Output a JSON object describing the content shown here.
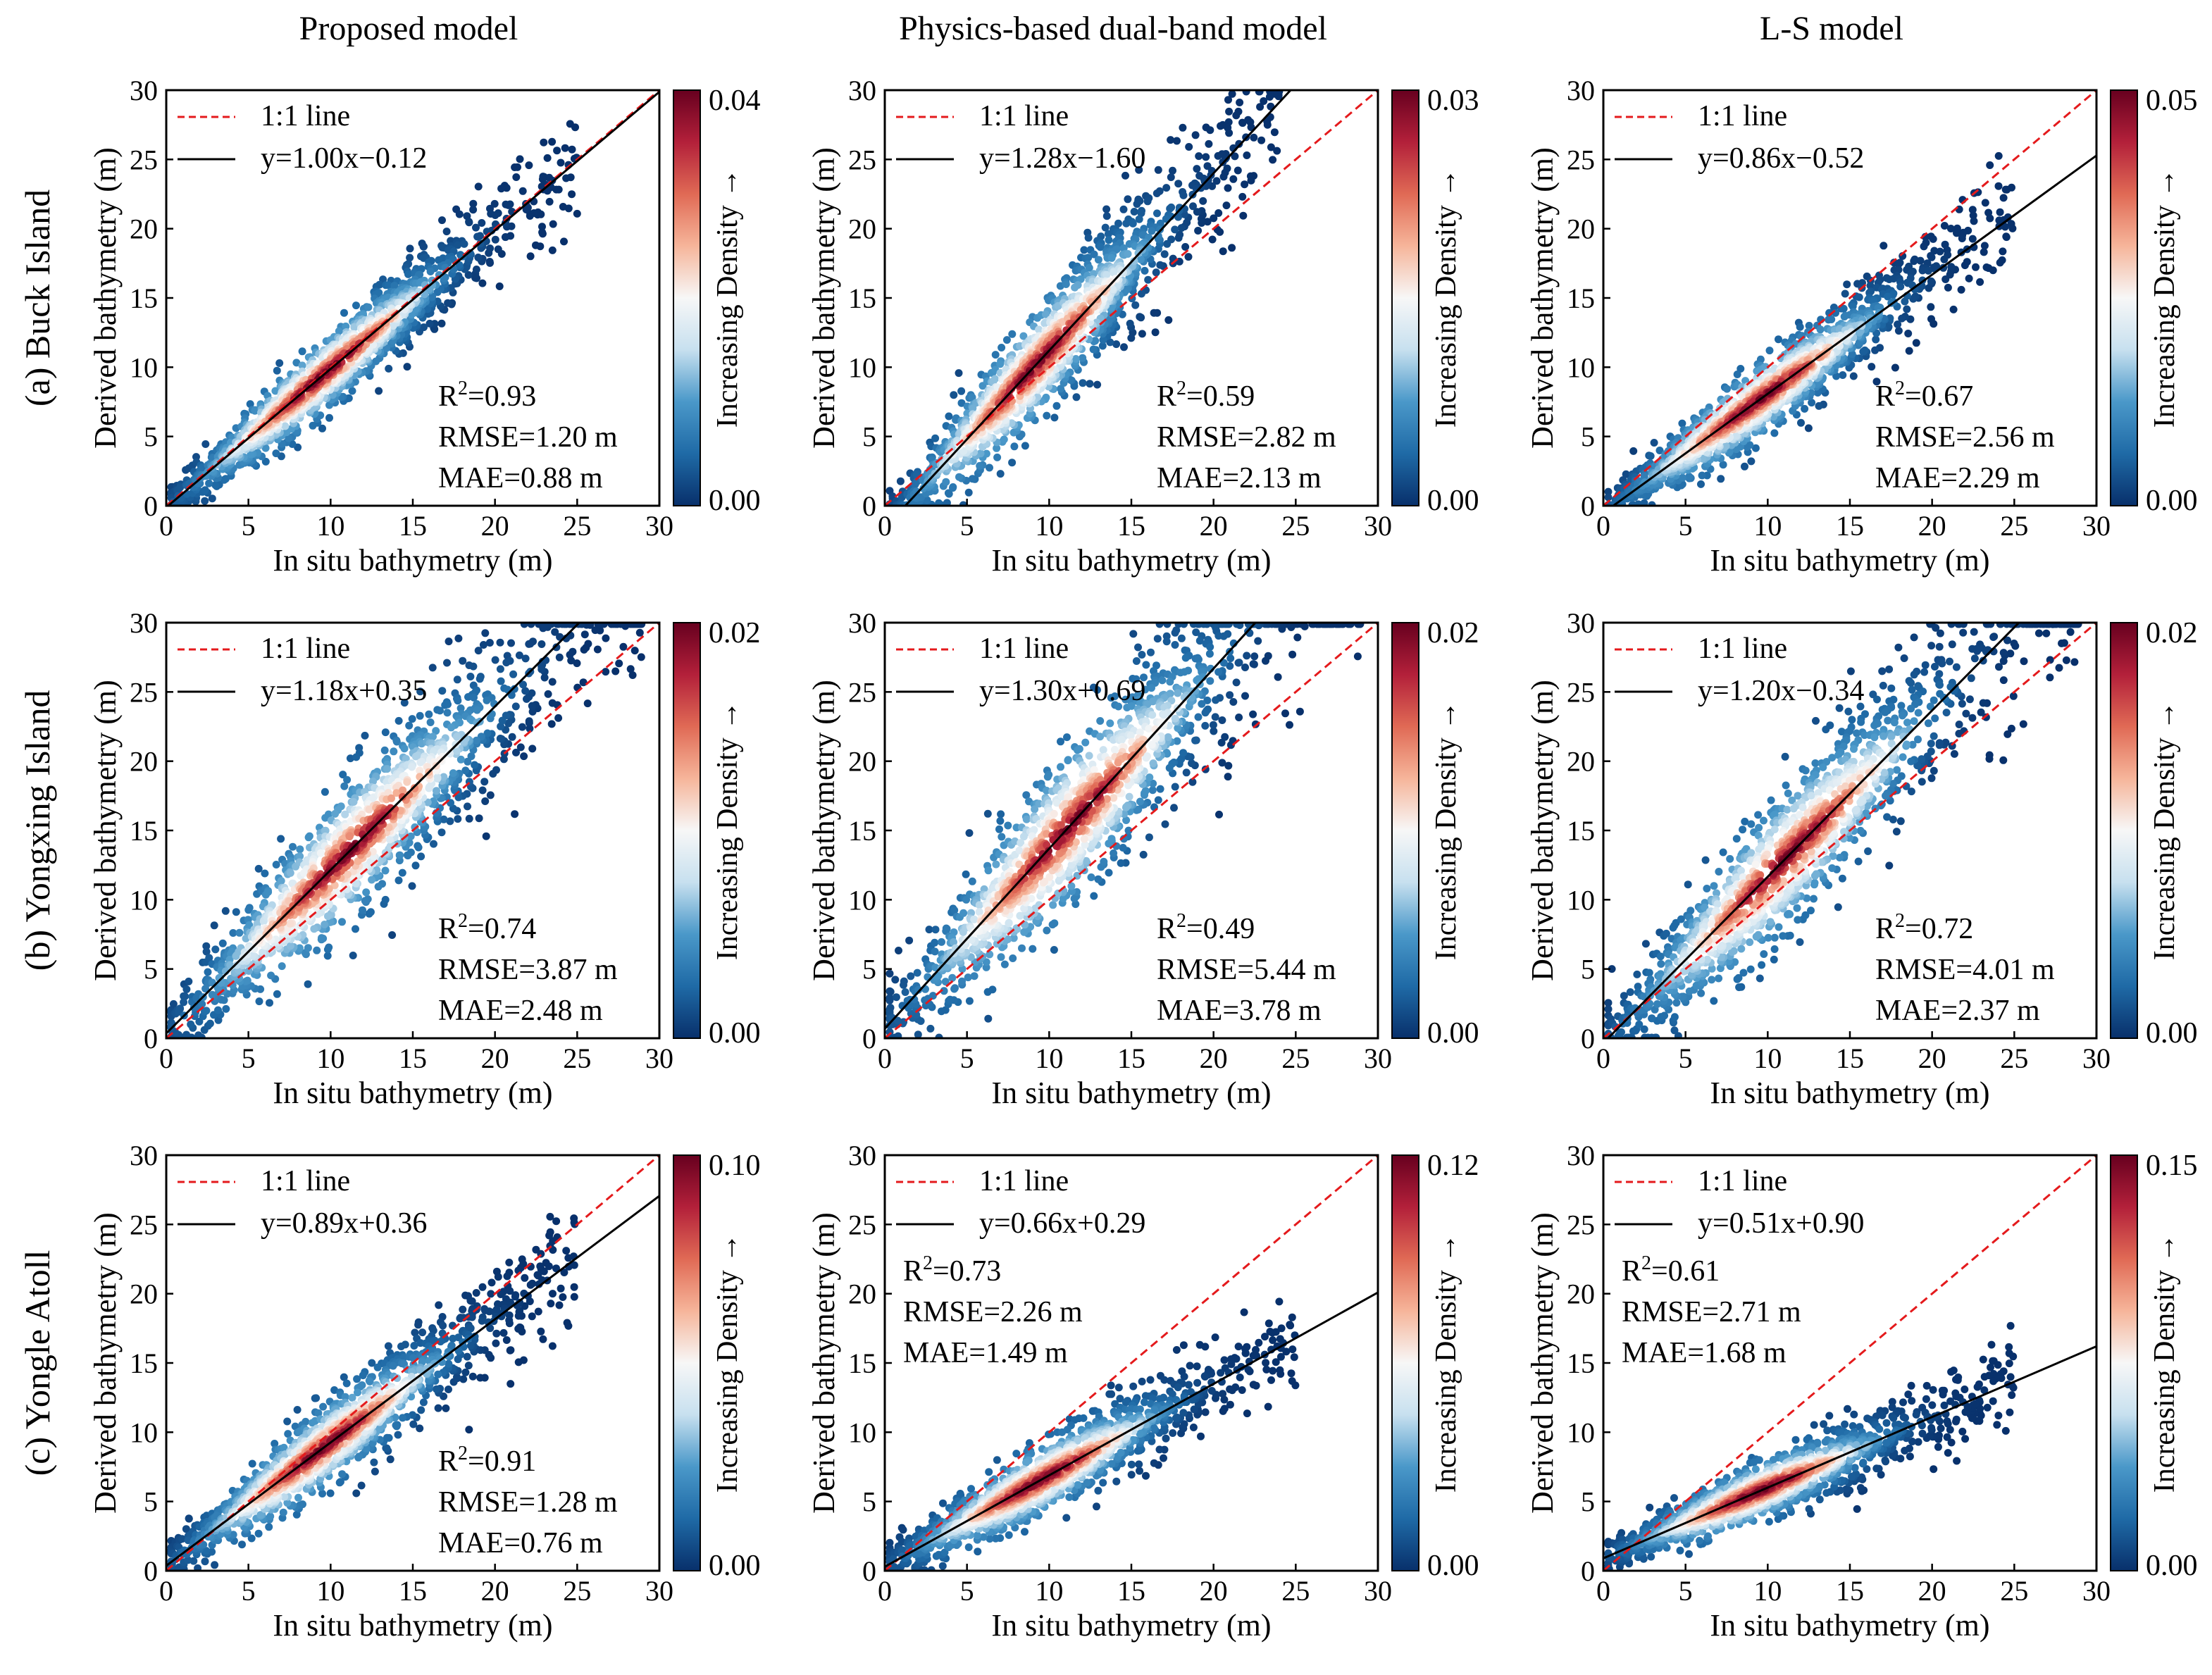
{
  "figure": {
    "column_titles": [
      "Proposed model",
      "Physics-based dual-band model",
      "L-S model"
    ],
    "row_labels": [
      "(a) Buck Island",
      "(b) Yongxing Island",
      "(c) Yongle Atoll"
    ],
    "xlabel": "In situ bathymetry (m)",
    "ylabel": "Derived bathymetry (m)",
    "colorbar_label": "Increasing Density →",
    "legend_identity": "1:1 line",
    "colors": {
      "identity_line": "#e41a1c",
      "fit_line": "#000000",
      "colormap": [
        "#08306b",
        "#1f6aa6",
        "#4a98c9",
        "#c7e0ef",
        "#f7f7f7",
        "#f6b59a",
        "#e06a55",
        "#b3203a",
        "#67001f"
      ]
    }
  },
  "chart_data": [
    {
      "type": "scatter",
      "panel": "Buck Island / Proposed model",
      "xlim": [
        0,
        30
      ],
      "ylim": [
        0,
        30
      ],
      "xticks": [
        0,
        5,
        10,
        15,
        20,
        25,
        30
      ],
      "yticks": [
        0,
        5,
        10,
        15,
        20,
        25,
        30
      ],
      "fit": {
        "slope": 1.0,
        "intercept": -0.12,
        "label": "y=1.00x−0.12"
      },
      "stats": {
        "r2": "=0.93",
        "rmse": "RMSE=1.20 m",
        "mae": "MAE=0.88 m"
      },
      "stats_position": "bottom-right",
      "density_range": [
        "0.00",
        "0.04"
      ],
      "x_range": [
        0.3,
        25
      ],
      "spread": 1.3
    },
    {
      "type": "scatter",
      "panel": "Buck Island / Physics-based dual-band model",
      "xlim": [
        0,
        30
      ],
      "ylim": [
        0,
        30
      ],
      "xticks": [
        0,
        5,
        10,
        15,
        20,
        25,
        30
      ],
      "yticks": [
        0,
        5,
        10,
        15,
        20,
        25,
        30
      ],
      "fit": {
        "slope": 1.28,
        "intercept": -1.6,
        "label": "y=1.28x−1.60"
      },
      "stats": {
        "r2": "=0.59",
        "rmse": "RMSE=2.82 m",
        "mae": "MAE=2.13 m"
      },
      "stats_position": "bottom-right",
      "density_range": [
        "0.00",
        "0.03"
      ],
      "x_range": [
        0.3,
        24
      ],
      "spread": 1.9
    },
    {
      "type": "scatter",
      "panel": "Buck Island / L-S model",
      "xlim": [
        0,
        30
      ],
      "ylim": [
        0,
        30
      ],
      "xticks": [
        0,
        5,
        10,
        15,
        20,
        25,
        30
      ],
      "yticks": [
        0,
        5,
        10,
        15,
        20,
        25,
        30
      ],
      "fit": {
        "slope": 0.86,
        "intercept": -0.52,
        "label": "y=0.86x−0.52"
      },
      "stats": {
        "r2": "=0.67",
        "rmse": "RMSE=2.56 m",
        "mae": "MAE=2.29 m"
      },
      "stats_position": "bottom-right",
      "density_range": [
        "0.00",
        "0.05"
      ],
      "x_range": [
        0.3,
        25
      ],
      "spread": 1.3
    },
    {
      "type": "scatter",
      "panel": "Yongxing Island / Proposed model",
      "xlim": [
        0,
        30
      ],
      "ylim": [
        0,
        30
      ],
      "xticks": [
        0,
        5,
        10,
        15,
        20,
        25,
        30
      ],
      "yticks": [
        0,
        5,
        10,
        15,
        20,
        25,
        30
      ],
      "fit": {
        "slope": 1.18,
        "intercept": 0.35,
        "label": "y=1.18x+0.35"
      },
      "stats": {
        "r2": "=0.74",
        "rmse": "RMSE=3.87 m",
        "mae": "MAE=2.48 m"
      },
      "stats_position": "bottom-right",
      "density_range": [
        "0.00",
        "0.02"
      ],
      "x_range": [
        0.3,
        29
      ],
      "spread": 2.4
    },
    {
      "type": "scatter",
      "panel": "Yongxing Island / Physics-based dual-band model",
      "xlim": [
        0,
        30
      ],
      "ylim": [
        0,
        30
      ],
      "xticks": [
        0,
        5,
        10,
        15,
        20,
        25,
        30
      ],
      "yticks": [
        0,
        5,
        10,
        15,
        20,
        25,
        30
      ],
      "fit": {
        "slope": 1.3,
        "intercept": 0.69,
        "label": "y=1.30x+0.69"
      },
      "stats": {
        "r2": "=0.49",
        "rmse": "RMSE=5.44 m",
        "mae": "MAE=3.78 m"
      },
      "stats_position": "bottom-right",
      "density_range": [
        "0.00",
        "0.02"
      ],
      "x_range": [
        0.3,
        29
      ],
      "spread": 2.8
    },
    {
      "type": "scatter",
      "panel": "Yongxing Island / L-S model",
      "xlim": [
        0,
        30
      ],
      "ylim": [
        0,
        30
      ],
      "xticks": [
        0,
        5,
        10,
        15,
        20,
        25,
        30
      ],
      "yticks": [
        0,
        5,
        10,
        15,
        20,
        25,
        30
      ],
      "fit": {
        "slope": 1.2,
        "intercept": -0.34,
        "label": "y=1.20x−0.34"
      },
      "stats": {
        "r2": "=0.72",
        "rmse": "RMSE=4.01 m",
        "mae": "MAE=2.37 m"
      },
      "stats_position": "bottom-right",
      "density_range": [
        "0.00",
        "0.02"
      ],
      "x_range": [
        0.3,
        29
      ],
      "spread": 2.4
    },
    {
      "type": "scatter",
      "panel": "Yongle Atoll / Proposed model",
      "xlim": [
        0,
        30
      ],
      "ylim": [
        0,
        30
      ],
      "xticks": [
        0,
        5,
        10,
        15,
        20,
        25,
        30
      ],
      "yticks": [
        0,
        5,
        10,
        15,
        20,
        25,
        30
      ],
      "fit": {
        "slope": 0.89,
        "intercept": 0.36,
        "label": "y=0.89x+0.36"
      },
      "stats": {
        "r2": "=0.91",
        "rmse": "RMSE=1.28 m",
        "mae": "MAE=0.76 m"
      },
      "stats_position": "bottom-right",
      "density_range": [
        "0.00",
        "0.10"
      ],
      "x_range": [
        0.3,
        25
      ],
      "spread": 1.4
    },
    {
      "type": "scatter",
      "panel": "Yongle Atoll / Physics-based dual-band model",
      "xlim": [
        0,
        30
      ],
      "ylim": [
        0,
        30
      ],
      "xticks": [
        0,
        5,
        10,
        15,
        20,
        25,
        30
      ],
      "yticks": [
        0,
        5,
        10,
        15,
        20,
        25,
        30
      ],
      "fit": {
        "slope": 0.66,
        "intercept": 0.29,
        "label": "y=0.66x+0.29"
      },
      "stats": {
        "r2": "=0.73",
        "rmse": "RMSE=2.26 m",
        "mae": "MAE=1.49 m"
      },
      "stats_position": "top-left",
      "density_range": [
        "0.00",
        "0.12"
      ],
      "x_range": [
        0.3,
        25
      ],
      "spread": 1.2
    },
    {
      "type": "scatter",
      "panel": "Yongle Atoll / L-S model",
      "xlim": [
        0,
        30
      ],
      "ylim": [
        0,
        30
      ],
      "xticks": [
        0,
        5,
        10,
        15,
        20,
        25,
        30
      ],
      "yticks": [
        0,
        5,
        10,
        15,
        20,
        25,
        30
      ],
      "fit": {
        "slope": 0.51,
        "intercept": 0.9,
        "label": "y=0.51x+0.90"
      },
      "stats": {
        "r2": "=0.61",
        "rmse": "RMSE=2.71 m",
        "mae": "MAE=1.68 m"
      },
      "stats_position": "top-left",
      "density_range": [
        "0.00",
        "0.15"
      ],
      "x_range": [
        0.3,
        25
      ],
      "spread": 1.0
    }
  ]
}
